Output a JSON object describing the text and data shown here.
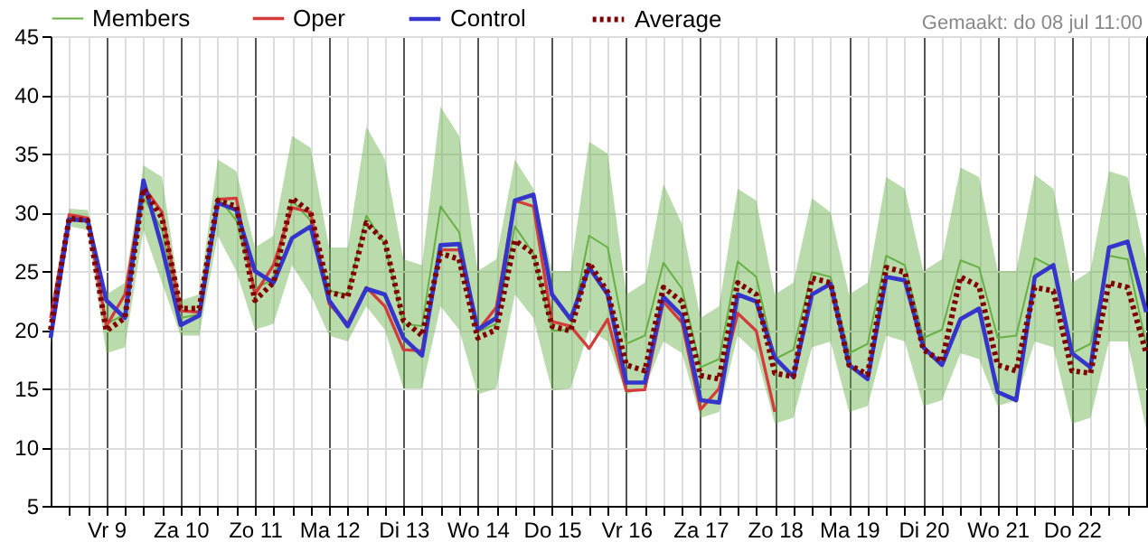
{
  "chart_data": {
    "type": "line",
    "x": [
      "--07-08T06:00",
      "--07-08T12:00",
      "--07-08T18:00",
      "--07-09T00:00",
      "--07-09T06:00",
      "--07-09T12:00",
      "--07-09T18:00",
      "--07-10T00:00",
      "--07-10T06:00",
      "--07-10T12:00",
      "--07-10T18:00",
      "--07-11T00:00",
      "--07-11T06:00",
      "--07-11T12:00",
      "--07-11T18:00",
      "--07-12T00:00",
      "--07-12T06:00",
      "--07-12T12:00",
      "--07-12T18:00",
      "--07-13T00:00",
      "--07-13T06:00",
      "--07-13T12:00",
      "--07-13T18:00",
      "--07-14T00:00",
      "--07-14T06:00",
      "--07-14T12:00",
      "--07-14T18:00",
      "--07-15T00:00",
      "--07-15T06:00",
      "--07-15T12:00",
      "--07-15T18:00",
      "--07-16T00:00",
      "--07-16T06:00",
      "--07-16T12:00",
      "--07-16T18:00",
      "--07-17T00:00",
      "--07-17T06:00",
      "--07-17T12:00",
      "--07-17T18:00",
      "--07-18T00:00",
      "--07-18T06:00",
      "--07-18T12:00",
      "--07-18T18:00",
      "--07-19T00:00",
      "--07-19T06:00",
      "--07-19T12:00",
      "--07-19T18:00",
      "--07-20T00:00",
      "--07-20T06:00",
      "--07-20T12:00",
      "--07-20T18:00",
      "--07-21T00:00",
      "--07-21T06:00",
      "--07-21T12:00",
      "--07-21T18:00",
      "--07-22T00:00",
      "--07-22T06:00",
      "--07-22T12:00",
      "--07-22T18:00",
      "--07-23T00:00"
    ],
    "series": [
      {
        "name": "Members",
        "color": "#66b044",
        "values": [
          19.8,
          29.6,
          29.4,
          20.5,
          21.3,
          31.3,
          28.5,
          21,
          21.3,
          31.3,
          29.3,
          23.5,
          24.3,
          31,
          29.3,
          23.3,
          23,
          29.7,
          27.3,
          20.5,
          20.3,
          30.5,
          28.3,
          19.8,
          20.5,
          28.8,
          26.5,
          19.9,
          20,
          28,
          27,
          18.8,
          19.5,
          25.7,
          23.5,
          16.8,
          17.5,
          25.8,
          24.5,
          17.5,
          18.3,
          24.9,
          24.5,
          18,
          18.8,
          26.3,
          25.5,
          19.3,
          20,
          25.9,
          25.3,
          19.3,
          19.5,
          26.1,
          25.3,
          18,
          18.8,
          26.3,
          26,
          18.8
        ],
        "lower": [
          18.5,
          28.8,
          28.5,
          18,
          18.5,
          28.5,
          24,
          19.5,
          19.5,
          28,
          25,
          20,
          20.5,
          25.5,
          23,
          19.5,
          19,
          22,
          20,
          15,
          15,
          22,
          20,
          14.5,
          15,
          23,
          21,
          14.8,
          15,
          20,
          19,
          14.5,
          15,
          19,
          18,
          12.5,
          13,
          19.5,
          18,
          12,
          12.5,
          18.5,
          19,
          13,
          13.5,
          19.5,
          19,
          13.5,
          14,
          18,
          17.5,
          13.5,
          14,
          19,
          18.5,
          12,
          12.5,
          19,
          19,
          11.5
        ],
        "upper": [
          21,
          30.3,
          30.2,
          23,
          24,
          34,
          33,
          22.5,
          23,
          34.5,
          33.5,
          27,
          28,
          36.5,
          35.5,
          27,
          27,
          37.3,
          34.5,
          26,
          25.5,
          39,
          36.5,
          25,
          26,
          34.5,
          32,
          25,
          25,
          36,
          35,
          23,
          24,
          32.4,
          29,
          21,
          22,
          32,
          31,
          23,
          24,
          31.2,
          30,
          23,
          24,
          33,
          32,
          25,
          26,
          33.8,
          33,
          25,
          25,
          33.2,
          32,
          24,
          25,
          33.5,
          33,
          26
        ]
      },
      {
        "name": "Oper",
        "color": "#d43c3c",
        "values": [
          21,
          29.8,
          29.5,
          20.3,
          23,
          32.2,
          30,
          21.6,
          21.5,
          31.1,
          31.2,
          23,
          25.5,
          30.4,
          30,
          22.2,
          20.5,
          23.6,
          22,
          18.3,
          18.2,
          26.8,
          26.8,
          19.9,
          21.9,
          31,
          30.5,
          20.7,
          20.3,
          18.4,
          20.9,
          14.8,
          14.9,
          22.4,
          20.6,
          13.2,
          15,
          21.4,
          19.9,
          13,
          null,
          null,
          null,
          null,
          null,
          null,
          null,
          null,
          null,
          null,
          null,
          null,
          null,
          null,
          null,
          null,
          null,
          null,
          null,
          null
        ]
      },
      {
        "name": "Control",
        "color": "#3535cc",
        "values": [
          19.3,
          29.4,
          29.3,
          22.5,
          21,
          32.7,
          27,
          20.4,
          21.2,
          30.8,
          30.2,
          25,
          24,
          27.8,
          28.8,
          22.5,
          20.3,
          23.5,
          23,
          19.3,
          17.8,
          27.2,
          27.3,
          20,
          21,
          31,
          31.5,
          23,
          20.9,
          25.3,
          23,
          15.5,
          15.5,
          22.8,
          21.2,
          14,
          13.8,
          23,
          22.4,
          17.6,
          16,
          23,
          23.9,
          17,
          15.8,
          24.5,
          24.2,
          18.5,
          17,
          20.9,
          21.8,
          14.7,
          14,
          24.5,
          25.5,
          18,
          16.8,
          27,
          27.5,
          21.5
        ]
      },
      {
        "name": "Average",
        "color": "#800000",
        "line_style": "dotted",
        "values": [
          20,
          29.5,
          29.3,
          19.9,
          21,
          32,
          29.5,
          21.8,
          21.8,
          31,
          30.5,
          22.5,
          24,
          31.2,
          30,
          23.2,
          22.8,
          29.1,
          27.5,
          20.8,
          19.5,
          26.5,
          26,
          19.3,
          20,
          27.6,
          26.5,
          20.3,
          19.9,
          25.7,
          23.2,
          17,
          16.5,
          23.6,
          22.4,
          16.1,
          15.8,
          24,
          23,
          16.3,
          16,
          24.4,
          24,
          17,
          16.2,
          25.3,
          24.9,
          18.3,
          17.3,
          24.5,
          23.7,
          17,
          16.5,
          23.6,
          23.3,
          16.5,
          16.3,
          24,
          23.6,
          18
        ]
      }
    ],
    "xlim": [
      "--07-08T06:00",
      "--07-23T00:00"
    ],
    "xticks": [
      {
        "value": "--07-08T12:00",
        "label": null
      },
      {
        "value": "--07-08T18:00",
        "label": null
      },
      {
        "value": "--07-09T00:00",
        "label": "Vr 9"
      },
      {
        "value": "--07-09T06:00",
        "label": null
      },
      {
        "value": "--07-09T12:00",
        "label": null
      },
      {
        "value": "--07-09T18:00",
        "label": null
      },
      {
        "value": "--07-10T00:00",
        "label": "Za 10"
      },
      {
        "value": "--07-10T06:00",
        "label": null
      },
      {
        "value": "--07-10T12:00",
        "label": null
      },
      {
        "value": "--07-10T18:00",
        "label": null
      },
      {
        "value": "--07-11T00:00",
        "label": "Zo 11"
      },
      {
        "value": "--07-11T06:00",
        "label": null
      },
      {
        "value": "--07-11T12:00",
        "label": null
      },
      {
        "value": "--07-11T18:00",
        "label": null
      },
      {
        "value": "--07-12T00:00",
        "label": "Ma 12"
      },
      {
        "value": "--07-12T06:00",
        "label": null
      },
      {
        "value": "--07-12T12:00",
        "label": null
      },
      {
        "value": "--07-12T18:00",
        "label": null
      },
      {
        "value": "--07-13T00:00",
        "label": "Di 13"
      },
      {
        "value": "--07-13T06:00",
        "label": null
      },
      {
        "value": "--07-13T12:00",
        "label": null
      },
      {
        "value": "--07-13T18:00",
        "label": null
      },
      {
        "value": "--07-14T00:00",
        "label": "Wo 14"
      },
      {
        "value": "--07-14T06:00",
        "label": null
      },
      {
        "value": "--07-14T12:00",
        "label": null
      },
      {
        "value": "--07-14T18:00",
        "label": null
      },
      {
        "value": "--07-15T00:00",
        "label": "Do 15"
      },
      {
        "value": "--07-15T06:00",
        "label": null
      },
      {
        "value": "--07-15T12:00",
        "label": null
      },
      {
        "value": "--07-15T18:00",
        "label": null
      },
      {
        "value": "--07-16T00:00",
        "label": "Vr 16"
      },
      {
        "value": "--07-16T06:00",
        "label": null
      },
      {
        "value": "--07-16T12:00",
        "label": null
      },
      {
        "value": "--07-16T18:00",
        "label": null
      },
      {
        "value": "--07-17T00:00",
        "label": "Za 17"
      },
      {
        "value": "--07-17T06:00",
        "label": null
      },
      {
        "value": "--07-17T12:00",
        "label": null
      },
      {
        "value": "--07-17T18:00",
        "label": null
      },
      {
        "value": "--07-18T00:00",
        "label": "Zo 18"
      },
      {
        "value": "--07-18T06:00",
        "label": null
      },
      {
        "value": "--07-18T12:00",
        "label": null
      },
      {
        "value": "--07-18T18:00",
        "label": null
      },
      {
        "value": "--07-19T00:00",
        "label": "Ma 19"
      },
      {
        "value": "--07-19T06:00",
        "label": null
      },
      {
        "value": "--07-19T12:00",
        "label": null
      },
      {
        "value": "--07-19T18:00",
        "label": null
      },
      {
        "value": "--07-20T00:00",
        "label": "Di 20"
      },
      {
        "value": "--07-20T06:00",
        "label": null
      },
      {
        "value": "--07-20T12:00",
        "label": null
      },
      {
        "value": "--07-20T18:00",
        "label": null
      },
      {
        "value": "--07-21T00:00",
        "label": "Wo 21"
      },
      {
        "value": "--07-21T06:00",
        "label": null
      },
      {
        "value": "--07-21T12:00",
        "label": null
      },
      {
        "value": "--07-21T18:00",
        "label": null
      },
      {
        "value": "--07-22T00:00",
        "label": "Do 22"
      },
      {
        "value": "--07-22T06:00",
        "label": null
      },
      {
        "value": "--07-22T12:00",
        "label": null
      },
      {
        "value": "--07-22T18:00",
        "label": null
      }
    ],
    "ylim": [
      5,
      45
    ],
    "yticks": [
      5,
      10,
      15,
      20,
      25,
      30,
      35,
      40,
      45
    ],
    "grid": true,
    "legend": "top left",
    "annotations": [
      "Gemaakt: do 08 jul 11:00"
    ]
  }
}
